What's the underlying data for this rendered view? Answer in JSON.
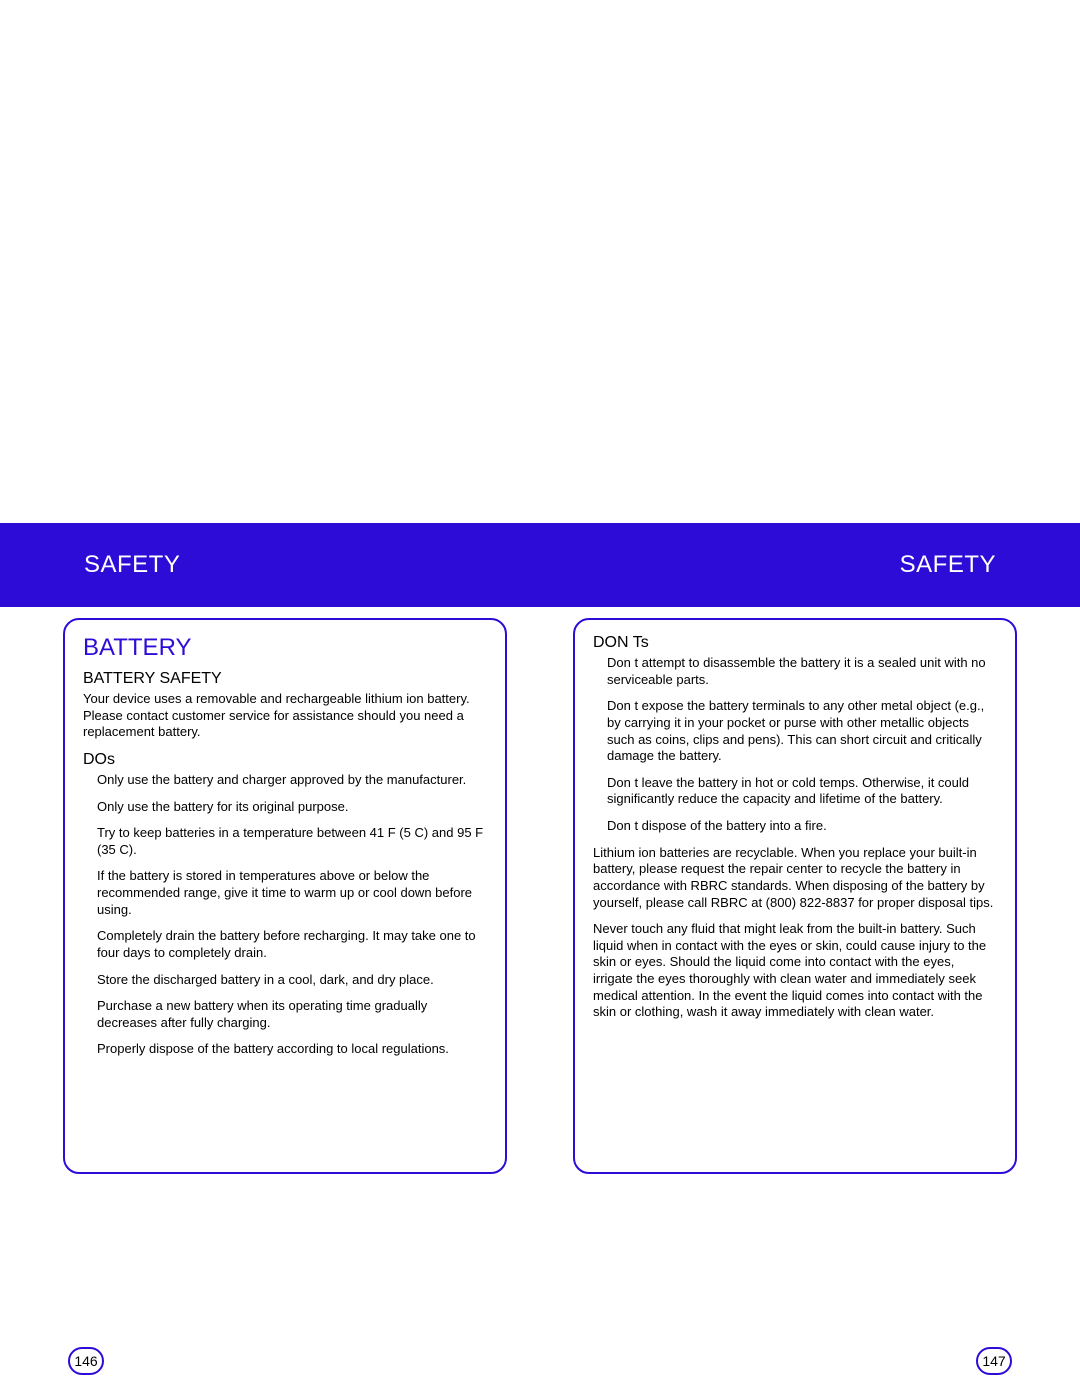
{
  "header": {
    "left": "SAFETY",
    "right": "SAFETY"
  },
  "colors": {
    "accent": "#2e0cd8",
    "background": "#ffffff",
    "text": "#000000"
  },
  "leftPage": {
    "title": "BATTERY",
    "subtitle": "BATTERY SAFETY",
    "intro": "Your device uses a removable and rechargeable lithium ion battery.  Please contact customer service for assistance should you need a replacement battery.",
    "dosLabel": "DOs",
    "dos": [
      "Only use the battery and charger approved by the manufacturer.",
      "Only use the battery for its original purpose.",
      "Try to keep batteries in a temperature between 41  F (5  C) and 95  F (35  C).",
      "If the battery is stored in temperatures above or below the recommended range, give it time to warm up or cool down before using.",
      "Completely drain the battery before recharging.  It may take one to four days to completely drain.",
      "Store the discharged battery in a cool, dark, and dry place.",
      "Purchase a new battery when its operating time gradually decreases after fully charging.",
      "Properly dispose of the battery according to local regulations."
    ],
    "pageNumber": "146"
  },
  "rightPage": {
    "dontsLabel": "DON Ts",
    "donts": [
      "Don t attempt to disassemble the battery   it is a sealed unit with no serviceable parts.",
      "Don t expose the battery terminals to any other metal object (e.g., by carrying it in your pocket or purse with other metallic objects such as coins, clips and pens).  This can short circuit and critically damage the battery.",
      "Don t leave the battery in hot or cold temps.  Otherwise, it could significantly reduce the capacity and lifetime of the battery.",
      "Don t dispose of the battery into a fire."
    ],
    "paragraphs": [
      "Lithium ion batteries are recyclable.  When you replace your built-in battery, please request the repair center to recycle the battery in accordance with RBRC standards.  When disposing of the battery by yourself, please call RBRC at (800) 822-8837 for proper disposal tips.",
      "Never touch any fluid that might leak from the built-in battery.  Such liquid when in contact with the eyes or skin, could cause injury to the skin or eyes.  Should the liquid come into contact with the eyes, irrigate the eyes thoroughly with clean water and immediately seek medical attention.  In the event the liquid comes into contact with the skin or clothing, wash it away immediately with clean water."
    ],
    "pageNumber": "147"
  }
}
